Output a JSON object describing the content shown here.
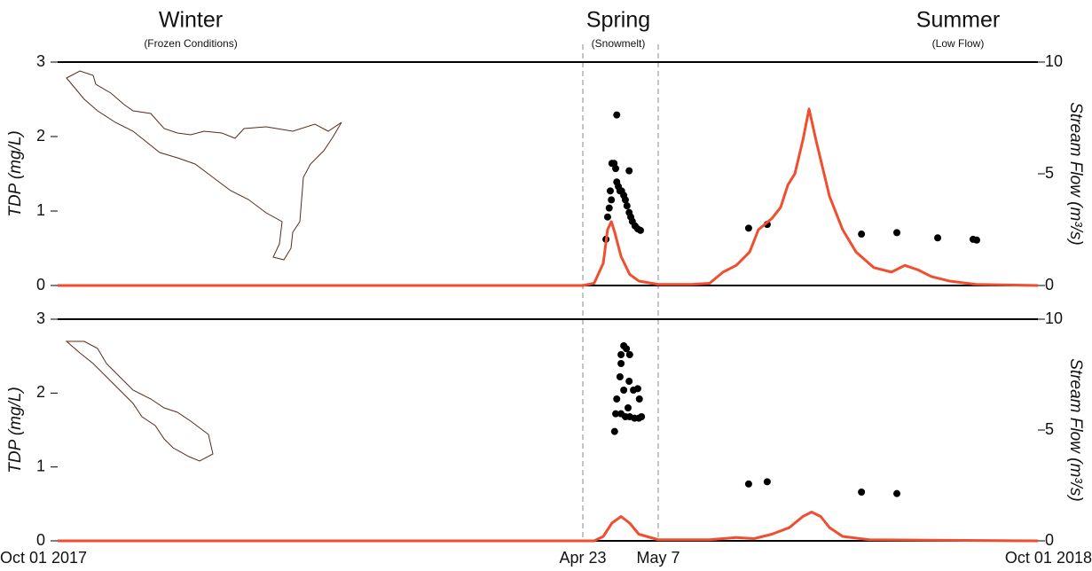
{
  "chart_data": [
    {
      "type": "combo",
      "ylabel": "TDP (mg/L)",
      "y2label": "Stream Flow (m³/s)",
      "ylim": [
        0,
        3
      ],
      "yticks": [
        0,
        1,
        2,
        3
      ],
      "y2lim": [
        0,
        10
      ],
      "y2ticks": [
        0,
        5,
        10
      ],
      "annotations": [
        {
          "title": "Winter",
          "subtitle": "(Frozen Conditions)"
        },
        {
          "title": "Spring",
          "subtitle": "(Snowmelt)"
        },
        {
          "title": "Summer",
          "subtitle": "(Low Flow)"
        }
      ],
      "series": [
        {
          "type": "scatter",
          "color": "#000000",
          "x": [
            208.3,
            210.3,
            208.6,
            208.9,
            209.3,
            209.4,
            209.8,
            210.1,
            210.3,
            210.6,
            210.9,
            211.2,
            211.6,
            211.9,
            212.2,
            212.6,
            212.9,
            213.2,
            213.7,
            214.2,
            214.7,
            212.6,
            209.1,
            253,
            260.2,
            296.7,
            310.4,
            326.2,
            339.9,
            341.3
          ],
          "values": [
            0.62,
            2.29,
            0.92,
            1.04,
            1.15,
            1.64,
            1.64,
            1.57,
            1.39,
            1.33,
            1.27,
            1.27,
            1.21,
            1.15,
            1.07,
            0.98,
            0.92,
            0.86,
            0.8,
            0.76,
            0.74,
            1.54,
            1.27,
            0.77,
            0.82,
            0.69,
            0.71,
            0.64,
            0.62,
            0.61
          ]
        },
        {
          "type": "line",
          "axis": "y2",
          "color": "#f04e2e",
          "x": [
            0,
            204,
            206.1,
            207.8,
            208.6,
            209.3,
            209.9,
            211.1,
            212.7,
            214.4,
            218,
            231.1,
            237.9,
            243.1,
            248.2,
            253.4,
            256.8,
            262,
            265.4,
            268.2,
            270.9,
            274,
            276.4,
            279.1,
            284.3,
            289.4,
            294.6,
            301.5,
            308.3,
            313.5,
            318.6,
            323.8,
            330.7,
            341,
            365
          ],
          "values": [
            0,
            0,
            0.1,
            1,
            2.5,
            2.86,
            2.4,
            1.3,
            0.5,
            0.2,
            0.05,
            0.05,
            0.1,
            0.6,
            0.9,
            1.5,
            2.5,
            3,
            3.5,
            4.5,
            5,
            6.5,
            7.9,
            6.5,
            4,
            2.5,
            1.5,
            0.8,
            0.6,
            0.9,
            0.7,
            0.4,
            0.2,
            0.05,
            0
          ]
        }
      ]
    },
    {
      "type": "combo",
      "ylabel": "TDP (mg/L)",
      "y2label": "Stream Flow (m³/s)",
      "ylim": [
        0,
        3
      ],
      "yticks": [
        0,
        1,
        2,
        3
      ],
      "y2lim": [
        0,
        10
      ],
      "y2ticks": [
        0,
        5,
        10
      ],
      "xlim": [
        0,
        365
      ],
      "xticks": [
        {
          "value": 0,
          "label": "Oct 01 2017"
        },
        {
          "value": 204,
          "label": "Apr 23"
        },
        {
          "value": 218,
          "label": "May 7"
        },
        {
          "value": 365,
          "label": "Oct 01 2018"
        }
      ],
      "series": [
        {
          "type": "scatter",
          "color": "#000000",
          "x": [
            211.6,
            212.1,
            211.1,
            212.7,
            211.1,
            210.9,
            211.6,
            212.6,
            213.4,
            214.2,
            210.3,
            212.4,
            214.5,
            210.1,
            211.1,
            211.9,
            212.7,
            213.6,
            214.4,
            214.9,
            209.9,
            253,
            260.2,
            296.7,
            310.4
          ],
          "values": [
            2.64,
            2.6,
            2.52,
            2.52,
            2.4,
            2.22,
            2.04,
            2.16,
            2.04,
            2.06,
            1.92,
            1.8,
            1.92,
            1.72,
            1.72,
            1.68,
            1.68,
            1.66,
            1.66,
            1.68,
            1.48,
            0.77,
            0.8,
            0.66,
            0.64
          ]
        },
        {
          "type": "line",
          "axis": "y2",
          "color": "#f04e2e",
          "x": [
            0,
            204,
            206.1,
            207.8,
            209.4,
            211.1,
            212.7,
            214.4,
            218,
            237.9,
            248.2,
            255.1,
            262,
            268.8,
            274,
            277.4,
            280.9,
            284.3,
            289.4,
            299.7,
            365
          ],
          "values": [
            0,
            0,
            0,
            0.2,
            0.8,
            1.1,
            0.8,
            0.3,
            0.05,
            0.05,
            0.15,
            0.1,
            0.3,
            0.6,
            1.1,
            1.3,
            1.1,
            0.6,
            0.2,
            0.05,
            0
          ]
        }
      ]
    }
  ]
}
